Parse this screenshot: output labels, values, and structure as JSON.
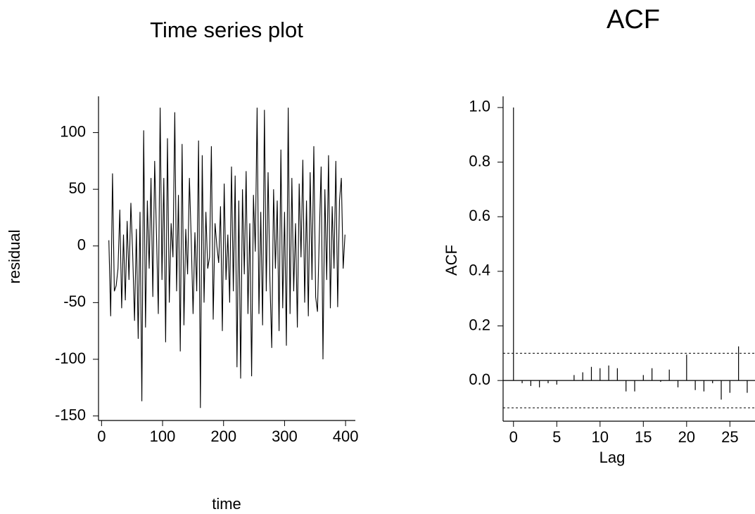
{
  "chart_data": [
    {
      "type": "line",
      "title": "Time series plot",
      "xlabel": "time",
      "ylabel": "residual",
      "color": "#000000",
      "x": [
        12,
        15,
        18,
        21,
        24,
        27,
        30,
        33,
        36,
        39,
        42,
        45,
        48,
        51,
        54,
        57,
        60,
        63,
        66,
        69,
        72,
        75,
        78,
        81,
        84,
        87,
        90,
        93,
        96,
        99,
        102,
        105,
        108,
        111,
        114,
        117,
        120,
        123,
        126,
        129,
        132,
        135,
        138,
        141,
        144,
        147,
        150,
        153,
        156,
        159,
        162,
        165,
        168,
        171,
        174,
        177,
        180,
        183,
        186,
        189,
        192,
        195,
        198,
        201,
        204,
        207,
        210,
        213,
        216,
        219,
        222,
        225,
        228,
        231,
        234,
        237,
        240,
        243,
        246,
        249,
        252,
        255,
        258,
        261,
        264,
        267,
        270,
        273,
        276,
        279,
        282,
        285,
        288,
        291,
        294,
        297,
        300,
        303,
        306,
        309,
        312,
        315,
        318,
        321,
        324,
        327,
        330,
        333,
        336,
        339,
        342,
        345,
        348,
        351,
        354,
        357,
        360,
        363,
        366,
        369,
        372,
        375,
        378,
        381,
        384,
        387,
        390,
        393,
        396,
        399
      ],
      "values": [
        5,
        -62,
        64,
        -40,
        -35,
        -20,
        32,
        -55,
        10,
        -48,
        22,
        -30,
        38,
        -8,
        -66,
        15,
        -82,
        30,
        -137,
        102,
        -72,
        40,
        -20,
        60,
        -45,
        75,
        10,
        -60,
        122,
        -30,
        60,
        -85,
        95,
        -50,
        20,
        -10,
        118,
        -40,
        45,
        -93,
        90,
        -70,
        15,
        -25,
        60,
        5,
        -60,
        12,
        -40,
        93,
        -143,
        80,
        -50,
        30,
        -20,
        -10,
        88,
        -65,
        20,
        0,
        -15,
        35,
        -75,
        55,
        -30,
        10,
        -50,
        70,
        -40,
        62,
        -107,
        40,
        -117,
        50,
        -25,
        66,
        -60,
        20,
        -115,
        45,
        -5,
        122,
        -60,
        30,
        -70,
        120,
        -40,
        65,
        -30,
        -90,
        50,
        -20,
        40,
        -75,
        85,
        -55,
        30,
        -88,
        122,
        -60,
        60,
        -40,
        20,
        -72,
        55,
        -10,
        76,
        -50,
        40,
        -62,
        65,
        -30,
        88,
        -45,
        -58,
        10,
        70,
        -100,
        50,
        -30,
        80,
        -55,
        35,
        -20,
        75,
        -54,
        40,
        60,
        -20,
        10
      ],
      "xlim": [
        -5,
        416
      ],
      "xticks": [
        0,
        100,
        200,
        300,
        400
      ],
      "ylim": [
        -154,
        132
      ],
      "yticks": [
        -150,
        -100,
        -50,
        0,
        50,
        100
      ]
    },
    {
      "type": "bar",
      "title": "ACF",
      "xlabel": "Lag",
      "ylabel": "ACF",
      "color": "#000000",
      "x": [
        0,
        1,
        2,
        3,
        4,
        5,
        6,
        7,
        8,
        9,
        10,
        11,
        12,
        13,
        14,
        15,
        16,
        17,
        18,
        19,
        20,
        21,
        22,
        23,
        24,
        25,
        26,
        27
      ],
      "values": [
        1.0,
        -0.01,
        -0.02,
        -0.025,
        -0.01,
        -0.015,
        0.0,
        0.02,
        0.03,
        0.05,
        0.045,
        0.055,
        0.045,
        -0.04,
        -0.04,
        0.02,
        0.045,
        -0.005,
        0.04,
        -0.025,
        0.095,
        -0.035,
        -0.04,
        -0.01,
        -0.07,
        -0.045,
        0.125,
        -0.045
      ],
      "conf_limits": [
        -0.1,
        0.1
      ],
      "xlim": [
        -1.2,
        27.9
      ],
      "xticks": [
        0,
        5,
        10,
        15,
        20,
        25
      ],
      "ylim": [
        -0.149,
        1.041
      ],
      "yticks": [
        {
          "value": 0,
          "label": "0.0"
        },
        0.2,
        0.4,
        0.6,
        0.8,
        {
          "value": 1,
          "label": "1.0"
        }
      ]
    }
  ]
}
